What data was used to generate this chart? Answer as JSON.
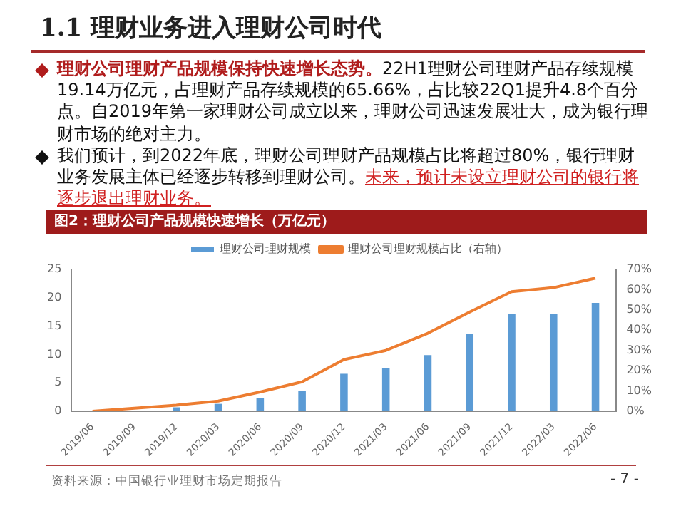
{
  "chart_data": {
    "type": "bar",
    "title": "1.1 理财业务进入理财公司时代",
    "subtitle": "图2：理财公司产品规模快速增长（万亿元）",
    "annotations": [
      "理财公司理财产品规模保持快速增长态势。",
      "22H1理财公司理财产品存续规模19.14万亿元，占理财产品存续规模的65.66%，占比较22Q1提升4.8个百分点。自2019年第一家理财公司成立以来，理财公司迅速发展壮大，成为银行理财市场的绝对主力。",
      "我们预计，到2022年底，理财公司理财产品规模占比将超过80%，银行理财业务发展主体已经逐步转移到理财公司。",
      "未来，预计未设立理财公司的银行将逐步退出理财业务。",
      "资料来源：中国银行业理财市场定期报告",
      "- 7 -"
    ],
    "categories": [
      "2019/06",
      "2019/09",
      "2019/12",
      "2020/03",
      "2020/06",
      "2020/09",
      "2020/12",
      "2021/03",
      "2021/06",
      "2021/09",
      "2021/12",
      "2022/03",
      "2022/06"
    ],
    "series": [
      {
        "name": "理财公司理财规模",
        "color": "#5b9bd5",
        "values": [
          0,
          0,
          0.7,
          1.3,
          2.3,
          3.6,
          6.6,
          7.6,
          9.9,
          13.6,
          17.1,
          17.2,
          19.1
        ]
      },
      {
        "name": "理财公司理财规模占比（右轴）",
        "type": "line",
        "axis": "y2",
        "color": "#ed7d31",
        "values": [
          0,
          1.5,
          3,
          5,
          9.5,
          14.5,
          25.5,
          30,
          38.5,
          49,
          59,
          61,
          65.7
        ]
      }
    ],
    "ylim": [
      0,
      25
    ],
    "yticks": [
      0,
      5,
      10,
      15,
      20,
      25
    ],
    "y2lim": [
      0,
      70
    ],
    "y2ticks": [
      {
        "value": 0,
        "label": "0%"
      },
      {
        "value": 10,
        "label": "10%"
      },
      {
        "value": 20,
        "label": "20%"
      },
      {
        "value": 30,
        "label": "30%"
      },
      {
        "value": 40,
        "label": "40%"
      },
      {
        "value": 50,
        "label": "50%"
      },
      {
        "value": 60,
        "label": "60%"
      },
      {
        "value": 70,
        "label": "70%"
      }
    ],
    "grid": false,
    "legend": "top",
    "marker": "none"
  }
}
